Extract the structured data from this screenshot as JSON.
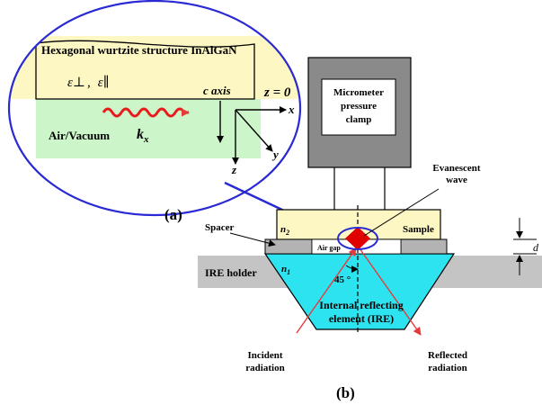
{
  "inset": {
    "title": "Hexagonal wurtzite structure InAlGaN",
    "eps_perp": "ε⊥",
    "eps_par": "ε∥",
    "comma": ",",
    "c_axis": "c axis",
    "z0": "z = 0",
    "air": "Air/Vacuum",
    "kx_k": "k",
    "kx_sub": "x",
    "axis_x": "x",
    "axis_y": "y",
    "axis_z": "z"
  },
  "labels": {
    "a": "(a)",
    "b": "(b)",
    "clamp_line1": "Micrometer",
    "clamp_line2": "pressure",
    "clamp_line3": "clamp",
    "evan_line1": "Evanescent",
    "evan_line2": "wave",
    "spacer": "Spacer",
    "n2": "n",
    "n2_sub": "2",
    "sample": "Sample",
    "air_gap": "Air gap",
    "d": "d",
    "ire_holder": "IRE holder",
    "n1": "n",
    "n1_sub": "1",
    "angle": "45 °",
    "ire_line1": "Internal reflecting",
    "ire_line2": "element (IRE)",
    "incident_line1": "Incident",
    "incident_line2": "radiation",
    "reflected_line1": "Reflected",
    "reflected_line2": "radiation"
  },
  "colors": {
    "ellipse": "#2a2ad4",
    "sample": "#fdf7c3",
    "air_region": "#ccf5c9",
    "wave": "#e81c1c",
    "clamp": "#8a8a8a",
    "ire": "#2ee3f0",
    "holder": "#c4c4c4",
    "spacer": "#b3b3b3",
    "ray": "#e63a3a",
    "marker": "#e00000"
  }
}
